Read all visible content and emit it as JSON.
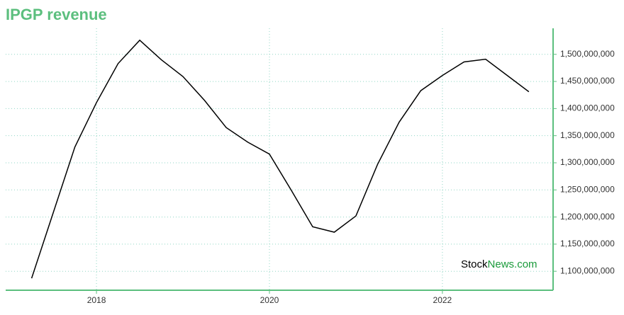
{
  "chart_data": {
    "type": "line",
    "title": "IPGP revenue",
    "watermark": [
      "Stock",
      "News.com"
    ],
    "x": [
      2017.25,
      2017.5,
      2017.75,
      2018.0,
      2018.25,
      2018.5,
      2018.75,
      2019.0,
      2019.25,
      2019.5,
      2019.75,
      2020.0,
      2020.25,
      2020.5,
      2020.75,
      2021.0,
      2021.25,
      2021.5,
      2021.75,
      2022.0,
      2022.25,
      2022.5,
      2022.75,
      2023.0
    ],
    "series": [
      {
        "name": "revenue",
        "color": "#000000",
        "values": [
          1087000000,
          1208000000,
          1329000000,
          1411000000,
          1483000000,
          1526000000,
          1490000000,
          1459000000,
          1415000000,
          1365000000,
          1338000000,
          1316000000,
          1250000000,
          1182000000,
          1172000000,
          1202000000,
          1297000000,
          1375000000,
          1433000000,
          1461000000,
          1486000000,
          1491000000,
          1461000000,
          1431000000
        ]
      }
    ],
    "xlim": [
      2016.95,
      2023.28
    ],
    "xticks": [
      2018,
      2020,
      2022
    ],
    "ylim": [
      1065000000,
      1548000000
    ],
    "yticks": [
      {
        "value": 1100000000,
        "label": "1,100,000,000"
      },
      {
        "value": 1150000000,
        "label": "1,150,000,000"
      },
      {
        "value": 1200000000,
        "label": "1,200,000,000"
      },
      {
        "value": 1250000000,
        "label": "1,250,000,000"
      },
      {
        "value": 1300000000,
        "label": "1,300,000,000"
      },
      {
        "value": 1350000000,
        "label": "1,350,000,000"
      },
      {
        "value": 1400000000,
        "label": "1,400,000,000"
      },
      {
        "value": 1450000000,
        "label": "1,450,000,000"
      },
      {
        "value": 1500000000,
        "label": "1,500,000,000"
      }
    ],
    "grid": true,
    "axis_color": "#5cbf7e",
    "grid_color": "#8fd6c4"
  }
}
